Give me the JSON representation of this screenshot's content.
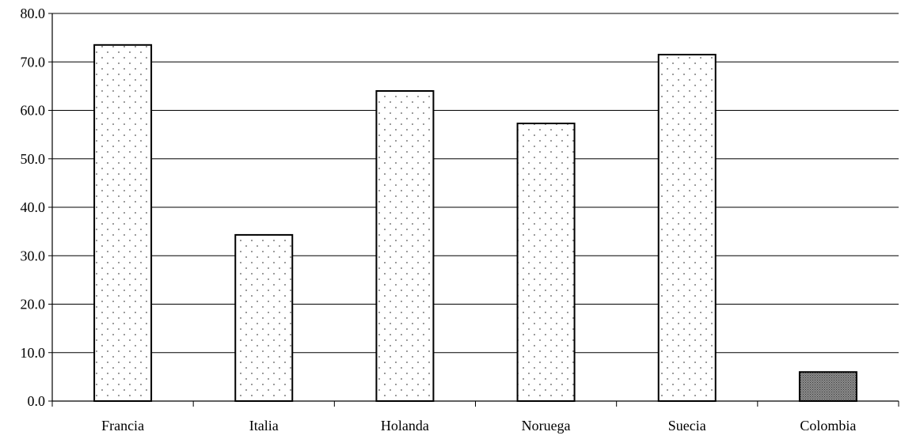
{
  "chart_data": {
    "type": "bar",
    "title": "",
    "xlabel": "",
    "ylabel": "",
    "categories": [
      "Francia",
      "Italia",
      "Holanda",
      "Noruega",
      "Suecia",
      "Colombia"
    ],
    "values": [
      73.5,
      34.3,
      64.0,
      57.3,
      71.5,
      6.0
    ],
    "ylim": [
      0,
      80
    ],
    "yticks": [
      "0.0",
      "10.0",
      "20.0",
      "30.0",
      "40.0",
      "50.0",
      "60.0",
      "70.0",
      "80.0"
    ],
    "grid": true,
    "legend": "none",
    "bar_styles": [
      "dotted",
      "dotted",
      "dotted",
      "dotted",
      "dotted",
      "dark-crosshatch"
    ]
  },
  "colors": {
    "bar_fill": "#ffffff",
    "bar_dots": "#555555",
    "bar_dark_fill": "#8c8c8c",
    "bar_dark_pattern": "#3a3a3a",
    "gridline": "#000000",
    "axis": "#000000"
  }
}
